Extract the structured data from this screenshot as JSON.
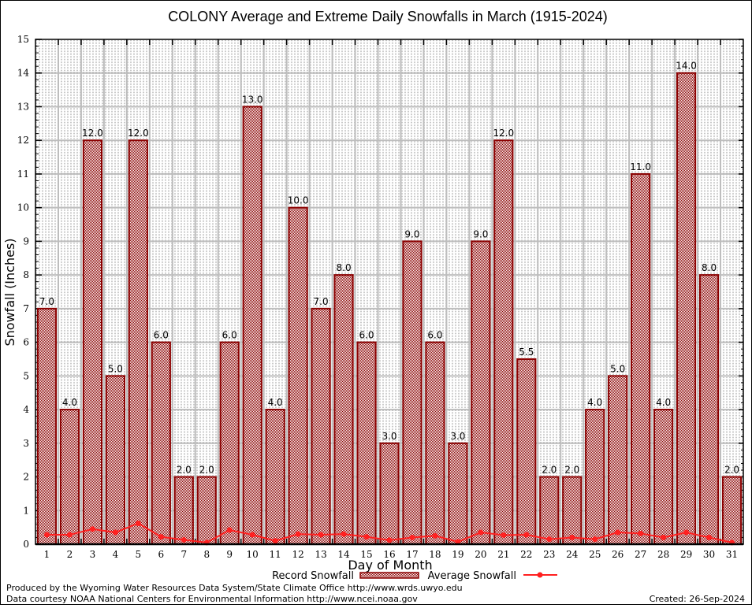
{
  "chart_data": {
    "type": "bar",
    "title": "COLONY Average and Extreme Daily Snowfalls in March (1915-2024)",
    "xlabel": "Day of Month",
    "ylabel": "Snowfall (Inches)",
    "ylim": [
      0,
      15
    ],
    "yticks": [
      "0",
      "1",
      "2",
      "3",
      "4",
      "5",
      "6",
      "7",
      "8",
      "9",
      "10",
      "11",
      "12",
      "13",
      "14",
      "15"
    ],
    "grid": true,
    "legend_position": "bottom",
    "categories": [
      "1",
      "2",
      "3",
      "4",
      "5",
      "6",
      "7",
      "8",
      "9",
      "10",
      "11",
      "12",
      "13",
      "14",
      "15",
      "16",
      "17",
      "18",
      "19",
      "20",
      "21",
      "22",
      "23",
      "24",
      "25",
      "26",
      "27",
      "28",
      "29",
      "30",
      "31"
    ],
    "series": [
      {
        "name": "Record Snowfall",
        "kind": "bar",
        "color": "#8b0000",
        "values": [
          7.0,
          4.0,
          12.0,
          5.0,
          12.0,
          6.0,
          2.0,
          2.0,
          6.0,
          13.0,
          4.0,
          10.0,
          7.0,
          8.0,
          6.0,
          3.0,
          9.0,
          6.0,
          3.0,
          9.0,
          12.0,
          5.5,
          2.0,
          2.0,
          4.0,
          5.0,
          11.0,
          4.0,
          14.0,
          8.0,
          2.0
        ],
        "labels": [
          "7.0",
          "4.0",
          "12.0",
          "5.0",
          "12.0",
          "6.0",
          "2.0",
          "2.0",
          "6.0",
          "13.0",
          "4.0",
          "10.0",
          "7.0",
          "8.0",
          "6.0",
          "3.0",
          "9.0",
          "6.0",
          "3.0",
          "9.0",
          "12.0",
          "5.5",
          "2.0",
          "2.0",
          "4.0",
          "5.0",
          "11.0",
          "4.0",
          "14.0",
          "8.0",
          "2.0"
        ]
      },
      {
        "name": "Average Snowfall",
        "kind": "line",
        "color": "#ff2020",
        "values": [
          0.28,
          0.28,
          0.45,
          0.35,
          0.62,
          0.22,
          0.13,
          0.05,
          0.42,
          0.28,
          0.1,
          0.3,
          0.28,
          0.3,
          0.22,
          0.12,
          0.2,
          0.25,
          0.07,
          0.35,
          0.27,
          0.28,
          0.15,
          0.2,
          0.15,
          0.35,
          0.32,
          0.2,
          0.35,
          0.2,
          0.05
        ]
      }
    ]
  },
  "footer": {
    "credit_line1": "Produced by the Wyoming Water Resources Data System/State Climate Office http://www.wrds.uwyo.edu",
    "credit_line2": "Data courtesy NOAA National Centers for Environmental Information http://www.ncei.noaa.gov",
    "created": "Created: 26-Sep-2024"
  }
}
